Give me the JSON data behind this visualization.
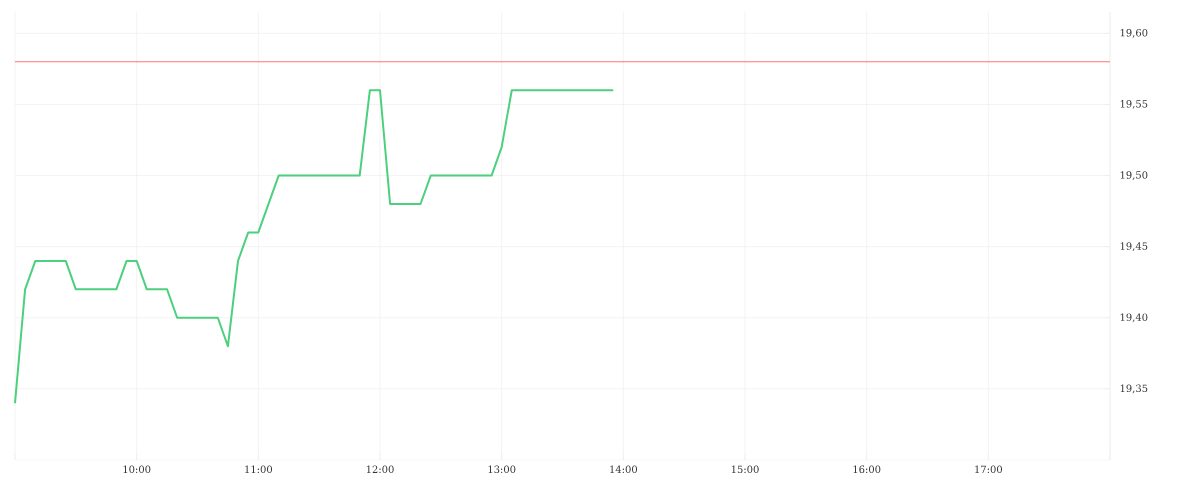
{
  "chart_data": {
    "type": "line",
    "x": [
      9.0,
      9.083,
      9.167,
      9.417,
      9.5,
      9.833,
      9.917,
      10.0,
      10.083,
      10.25,
      10.333,
      10.667,
      10.75,
      10.833,
      10.917,
      11.0,
      11.167,
      11.833,
      11.917,
      12.0,
      12.083,
      12.333,
      12.417,
      12.917,
      13.0,
      13.083,
      13.917
    ],
    "series": [
      {
        "color": "#4cd07d",
        "values": [
          19.34,
          19.42,
          19.44,
          19.44,
          19.42,
          19.42,
          19.44,
          19.44,
          19.42,
          19.42,
          19.4,
          19.4,
          19.38,
          19.44,
          19.46,
          19.46,
          19.5,
          19.5,
          19.56,
          19.56,
          19.48,
          19.48,
          19.5,
          19.5,
          19.52,
          19.56,
          19.56
        ]
      }
    ],
    "xlim": [
      9,
      18
    ],
    "xticks": [
      {
        "value": 9,
        "label": null
      },
      {
        "value": 10,
        "label": "10:00"
      },
      {
        "value": 11,
        "label": "11:00"
      },
      {
        "value": 12,
        "label": "12:00"
      },
      {
        "value": 13,
        "label": "13:00"
      },
      {
        "value": 14,
        "label": "14:00"
      },
      {
        "value": 15,
        "label": "15:00"
      },
      {
        "value": 16,
        "label": "16:00"
      },
      {
        "value": 17,
        "label": "17:00"
      },
      {
        "value": 18,
        "label": null
      }
    ],
    "ylim": [
      19.3,
      19.615
    ],
    "yticks": [
      {
        "value": 19.35,
        "label": "19,35"
      },
      {
        "value": 19.4,
        "label": "19,40"
      },
      {
        "value": 19.45,
        "label": "19,45"
      },
      {
        "value": 19.5,
        "label": "19,50"
      },
      {
        "value": 19.55,
        "label": "19,55"
      },
      {
        "value": 19.6,
        "label": "19,60"
      }
    ],
    "ref_lines": [
      {
        "axis": "y",
        "value": 19.58,
        "color": "#ff5050"
      }
    ],
    "grid": true
  }
}
